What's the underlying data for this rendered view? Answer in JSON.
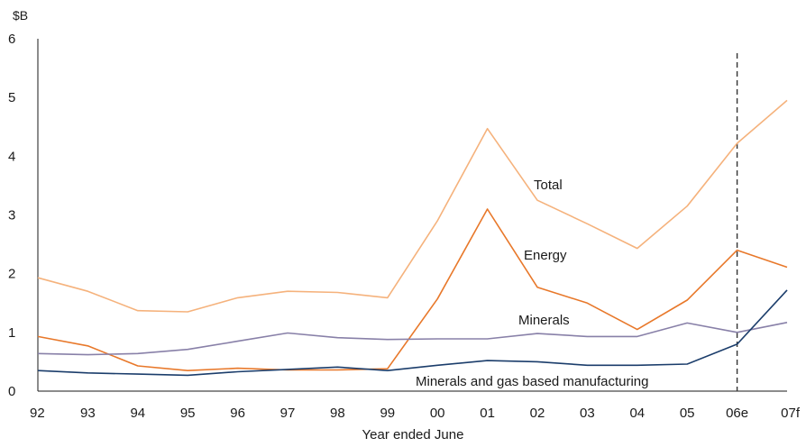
{
  "chart_data": {
    "type": "line",
    "title": "",
    "y_unit_label": "$B",
    "xlabel": "Year ended June",
    "ylabel": "",
    "ylim": [
      0,
      6
    ],
    "yticks": [
      "0",
      "1",
      "2",
      "3",
      "4",
      "5",
      "6"
    ],
    "categories": [
      "92",
      "93",
      "94",
      "95",
      "96",
      "97",
      "98",
      "99",
      "00",
      "01",
      "02",
      "03",
      "04",
      "05",
      "06e",
      "07f"
    ],
    "grid": false,
    "legend": "none (series labelled directly on the lines)",
    "forecast_marker": {
      "category": "06e",
      "style": "dashed vertical line"
    },
    "series": [
      {
        "name": "Total",
        "color": "#f5b27c",
        "values": [
          1.93,
          1.7,
          1.37,
          1.35,
          1.59,
          1.7,
          1.68,
          1.59,
          2.9,
          4.47,
          3.25,
          2.85,
          2.43,
          3.15,
          4.22,
          4.95
        ]
      },
      {
        "name": "Energy",
        "color": "#e8782a",
        "values": [
          0.93,
          0.77,
          0.43,
          0.35,
          0.39,
          0.36,
          0.36,
          0.38,
          1.57,
          3.1,
          1.77,
          1.5,
          1.05,
          1.55,
          2.4,
          2.11
        ]
      },
      {
        "name": "Minerals",
        "color": "#8880a8",
        "values": [
          0.64,
          0.62,
          0.64,
          0.71,
          0.85,
          0.99,
          0.91,
          0.88,
          0.89,
          0.89,
          0.98,
          0.93,
          0.93,
          1.16,
          1.0,
          1.17
        ]
      },
      {
        "name": "Minerals and gas based manufacturing",
        "color": "#1b3d6b",
        "values": [
          0.35,
          0.31,
          0.29,
          0.27,
          0.33,
          0.37,
          0.41,
          0.35,
          0.44,
          0.52,
          0.5,
          0.44,
          0.44,
          0.46,
          0.8,
          1.72
        ]
      }
    ]
  }
}
